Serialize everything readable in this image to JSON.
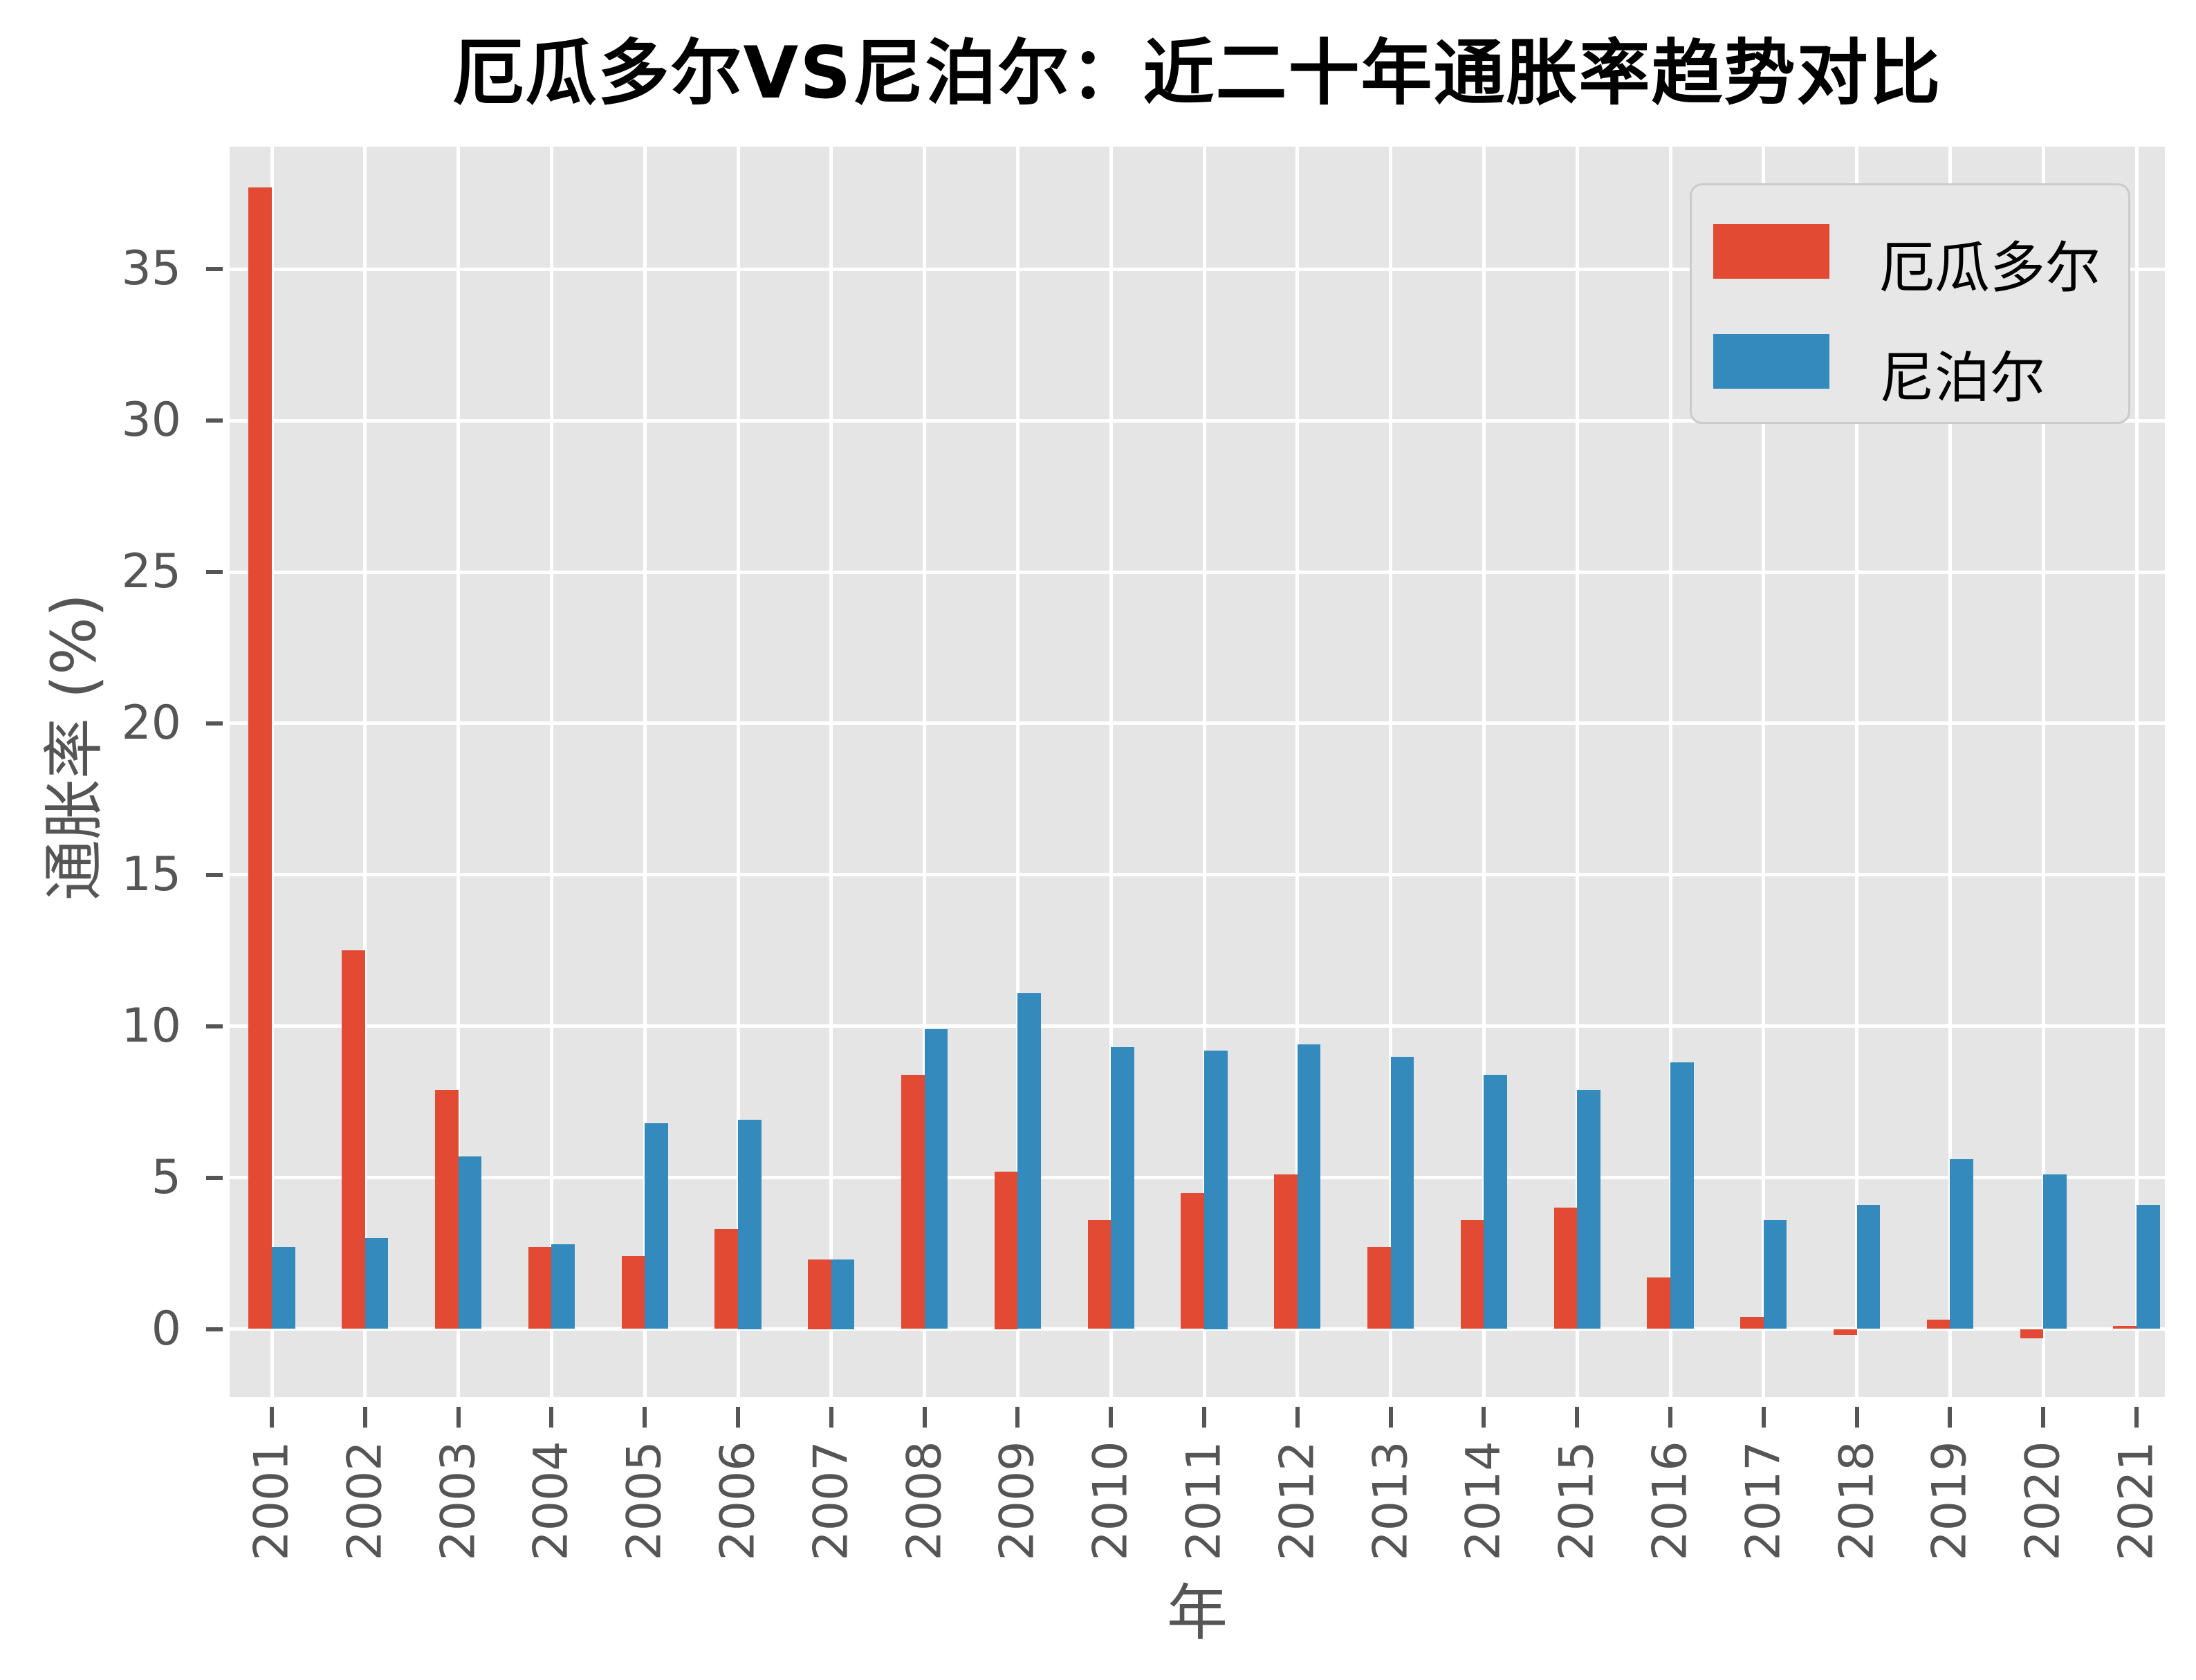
{
  "title": "厄瓜多尔VS尼泊尔：近二十年通胀率趋势对比",
  "chart_data": {
    "type": "bar",
    "title": "厄瓜多尔VS尼泊尔：近二十年通胀率趋势对比",
    "xlabel": "年",
    "ylabel": "通胀率 (%)",
    "categories": [
      "2001",
      "2002",
      "2003",
      "2004",
      "2005",
      "2006",
      "2007",
      "2008",
      "2009",
      "2010",
      "2011",
      "2012",
      "2013",
      "2014",
      "2015",
      "2016",
      "2017",
      "2018",
      "2019",
      "2020",
      "2021"
    ],
    "series": [
      {
        "name": "厄瓜多尔",
        "slug": "ecuador",
        "color": "#E24A33",
        "values": [
          37.7,
          12.5,
          7.9,
          2.7,
          2.4,
          3.3,
          2.3,
          8.4,
          5.2,
          3.6,
          4.5,
          5.1,
          2.7,
          3.6,
          4.0,
          1.7,
          0.4,
          -0.2,
          0.3,
          -0.3,
          0.1
        ]
      },
      {
        "name": "尼泊尔",
        "slug": "nepal",
        "color": "#348ABD",
        "values": [
          2.7,
          3.0,
          5.7,
          2.8,
          6.8,
          6.9,
          2.3,
          9.9,
          11.1,
          9.3,
          9.2,
          9.4,
          9.0,
          8.4,
          7.9,
          8.8,
          3.6,
          4.1,
          5.6,
          5.1,
          4.1
        ]
      }
    ],
    "yticks": [
      0,
      5,
      10,
      15,
      20,
      25,
      30,
      35
    ],
    "ylim": [
      -2.25,
      39.05
    ],
    "grid": true,
    "grid_color": "#FFFFFF",
    "plot_background": "#E5E5E5",
    "tick_color": "#555555",
    "legend_position": "upper right"
  }
}
